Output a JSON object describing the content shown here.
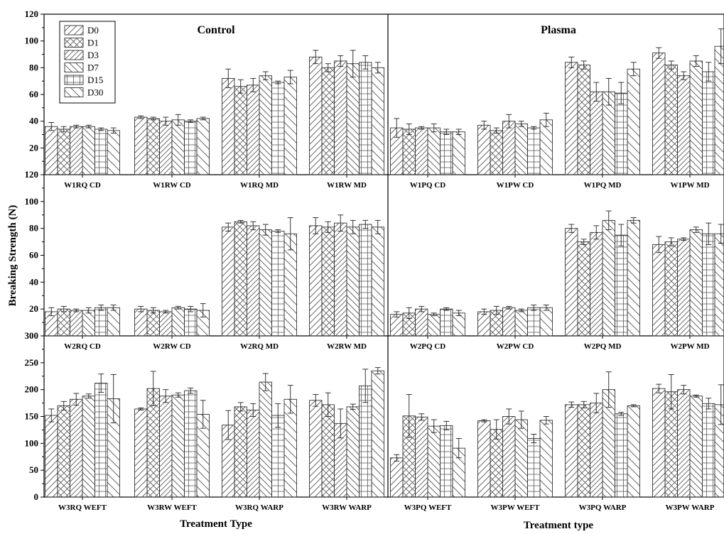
{
  "chart_data": {
    "type": "bar",
    "ylabel": "Breaking Strength (N)",
    "xlabel_left": "Treatment Type",
    "xlabel_right": "Treatment type",
    "column_titles": [
      "Control",
      "Plasma"
    ],
    "legend": [
      "D0",
      "D1",
      "D3",
      "D7",
      "D15",
      "D30"
    ],
    "legend_placement": "top-left",
    "grid": false,
    "rows": [
      {
        "ylim": [
          0,
          120
        ],
        "yticks": [
          "20",
          "40",
          "60",
          "80",
          "100",
          "120"
        ],
        "categories": [
          "W1RQ CD",
          "W1RW CD",
          "W1RQ MD",
          "W1RW MD",
          "W1PQ CD",
          "W1PW CD",
          "W1PQ MD",
          "W1PW MD"
        ],
        "values": [
          [
            36,
            34,
            36,
            36,
            34,
            33
          ],
          [
            43,
            42,
            40,
            41,
            40,
            42
          ],
          [
            72,
            66,
            67,
            74,
            69,
            73
          ],
          [
            88,
            80,
            85,
            83,
            84,
            80
          ],
          [
            35,
            34,
            35,
            35,
            32,
            32
          ],
          [
            37,
            33,
            40,
            38,
            35,
            41
          ],
          [
            84,
            82,
            62,
            62,
            61,
            79
          ],
          [
            91,
            82,
            74,
            85,
            77,
            96
          ]
        ],
        "errors": [
          [
            3,
            2,
            1,
            1,
            1,
            2
          ],
          [
            1,
            1,
            3,
            4,
            1,
            1
          ],
          [
            7,
            5,
            5,
            3,
            1,
            5
          ],
          [
            5,
            3,
            4,
            10,
            5,
            4
          ],
          [
            7,
            4,
            1,
            3,
            2,
            2
          ],
          [
            3,
            2,
            5,
            2,
            1,
            5
          ],
          [
            4,
            3,
            7,
            10,
            8,
            5
          ],
          [
            4,
            3,
            3,
            4,
            7,
            13
          ]
        ]
      },
      {
        "ylim": [
          0,
          120
        ],
        "yticks": [
          "20",
          "40",
          "60",
          "80",
          "100",
          "120"
        ],
        "categories": [
          "W2RQ CD",
          "W2RW CD",
          "W2RQ MD",
          "W2RW MD",
          "W2PQ CD",
          "W2PW CD",
          "W2PQ MD",
          "W2PW MD"
        ],
        "values": [
          [
            18,
            20,
            19,
            19,
            21,
            21
          ],
          [
            20,
            19,
            18,
            21,
            20,
            19
          ],
          [
            81,
            85,
            82,
            79,
            78,
            76
          ],
          [
            82,
            81,
            84,
            81,
            83,
            81
          ],
          [
            16,
            17,
            20,
            16,
            20,
            17
          ],
          [
            18,
            19,
            21,
            19,
            21,
            21
          ],
          [
            80,
            70,
            77,
            86,
            75,
            86
          ],
          [
            68,
            70,
            72,
            79,
            76,
            76
          ]
        ],
        "errors": [
          [
            3,
            2,
            1,
            2,
            2,
            2
          ],
          [
            2,
            2,
            1,
            1,
            2,
            5
          ],
          [
            3,
            1,
            3,
            4,
            1,
            12
          ],
          [
            6,
            4,
            6,
            5,
            3,
            5
          ],
          [
            2,
            4,
            2,
            1,
            1,
            2
          ],
          [
            2,
            3,
            1,
            1,
            2,
            2
          ],
          [
            3,
            2,
            5,
            7,
            8,
            2
          ],
          [
            6,
            3,
            1,
            2,
            8,
            7
          ]
        ]
      },
      {
        "ylim": [
          0,
          300
        ],
        "yticks": [
          "0",
          "50",
          "100",
          "150",
          "200",
          "250",
          "300"
        ],
        "categories": [
          "W3RQ WEFT",
          "W3RW WEFT",
          "W3RQ WARP",
          "W3RW WARP",
          "W3PQ WEFT",
          "W3PW WEFT",
          "W3PQ WARP",
          "W3PW WARP"
        ],
        "values": [
          [
            152,
            170,
            182,
            188,
            212,
            183
          ],
          [
            164,
            202,
            188,
            190,
            198,
            154
          ],
          [
            134,
            168,
            162,
            214,
            152,
            182
          ],
          [
            180,
            172,
            137,
            168,
            207,
            235
          ],
          [
            73,
            151,
            149,
            132,
            133,
            91
          ],
          [
            142,
            126,
            150,
            144,
            109,
            143
          ],
          [
            172,
            172,
            175,
            200,
            155,
            170
          ],
          [
            202,
            196,
            200,
            188,
            174,
            172
          ]
        ],
        "errors": [
          [
            12,
            8,
            11,
            4,
            17,
            45
          ],
          [
            2,
            32,
            12,
            4,
            5,
            26
          ],
          [
            27,
            8,
            12,
            16,
            22,
            26
          ],
          [
            11,
            22,
            27,
            5,
            31,
            6
          ],
          [
            6,
            40,
            6,
            12,
            8,
            18
          ],
          [
            2,
            18,
            14,
            16,
            8,
            7
          ],
          [
            5,
            6,
            18,
            33,
            3,
            2
          ],
          [
            8,
            32,
            8,
            2,
            10,
            37
          ]
        ]
      }
    ]
  }
}
